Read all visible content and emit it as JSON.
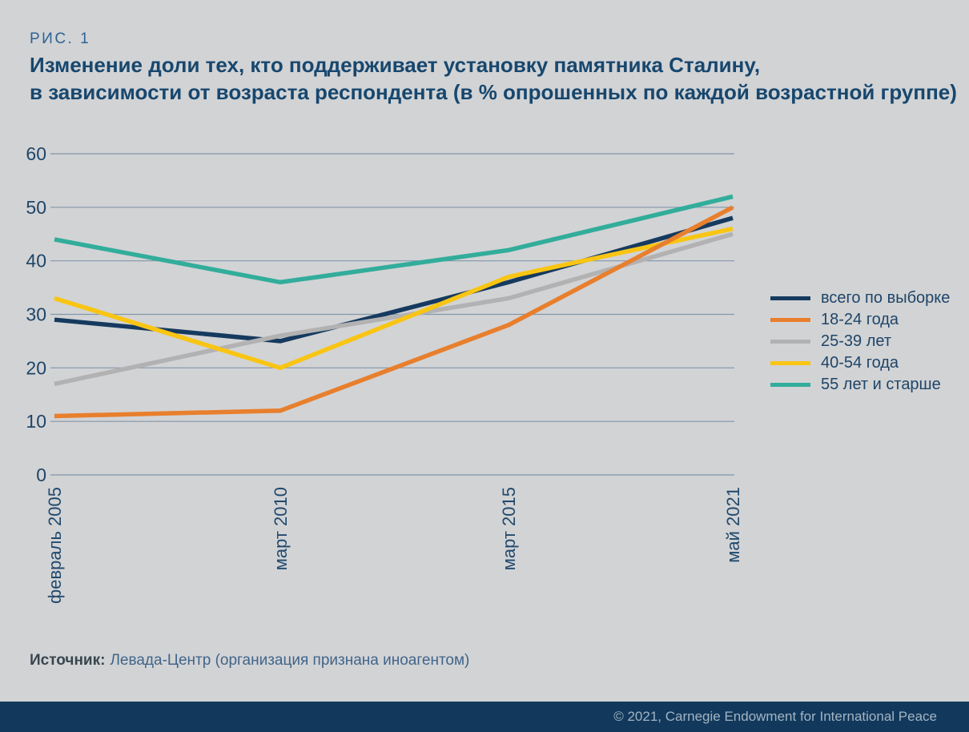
{
  "figure_label": "РИС. 1",
  "title": {
    "line1": "Изменение доли тех, кто поддерживает установку памятника Сталину,",
    "line2": "в зависимости от возраста респондента (в % опрошенных по каждой возрастной группе)"
  },
  "source": {
    "label": "Источник:",
    "text": "Левада-Центр (организация признана иноагентом)"
  },
  "footer": {
    "copyright": "© 2021, Carnegie Endowment for International Peace"
  },
  "colors": {
    "background": "#d2d3d5",
    "title": "#17476e",
    "figure_label": "#2d6396",
    "axis_text": "#1e4568",
    "gridline": "#8196a8",
    "footer_bar": "#12395c",
    "footer_text": "#a2b4c3"
  },
  "chart_data": {
    "type": "line",
    "categories": [
      "февраль 2005",
      "март 2010",
      "март 2015",
      "май 2021"
    ],
    "series": [
      {
        "name": "всего по выборке",
        "color": "#163a5f",
        "values": [
          29,
          25,
          36,
          48
        ]
      },
      {
        "name": "18-24 года",
        "color": "#e87f2d",
        "values": [
          11,
          12,
          28,
          50
        ]
      },
      {
        "name": "25-39 лет",
        "color": "#b2b2b3",
        "values": [
          17,
          26,
          33,
          45
        ]
      },
      {
        "name": "40-54 года",
        "color": "#f9c513",
        "values": [
          33,
          20,
          37,
          46
        ]
      },
      {
        "name": "55 лет и старше",
        "color": "#32ad9b",
        "values": [
          44,
          36,
          42,
          52
        ]
      }
    ],
    "draw_order": [
      0,
      2,
      3,
      1,
      4
    ],
    "ylim": [
      0,
      60
    ],
    "yticks": [
      0,
      10,
      20,
      30,
      40,
      50,
      60
    ],
    "grid": true,
    "legend_position": "right",
    "ylabel": "",
    "xlabel": ""
  }
}
